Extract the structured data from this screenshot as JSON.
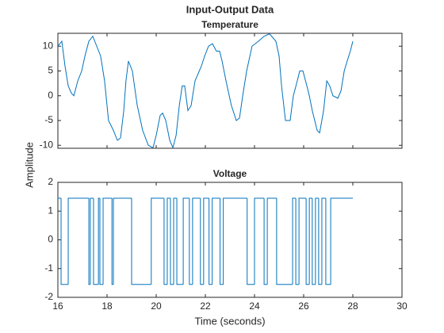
{
  "title": "Input-Output Data",
  "ylabel": "Amplitude",
  "xlabel": "Time (seconds)",
  "chart_data": [
    {
      "type": "line",
      "title": "Temperature",
      "color": "#0072BD",
      "xlim": [
        16,
        30
      ],
      "xticks": [
        16,
        18,
        20,
        22,
        24,
        26,
        28,
        30
      ],
      "show_xtick_labels": false,
      "ylim": [
        -10.6,
        12.6
      ],
      "yticks": [
        -10,
        -5,
        0,
        5,
        10
      ],
      "x": [
        16.0,
        16.16,
        16.29,
        16.42,
        16.55,
        16.65,
        16.81,
        16.97,
        17.1,
        17.26,
        17.42,
        17.58,
        17.74,
        17.9,
        18.06,
        18.26,
        18.42,
        18.55,
        18.68,
        18.77,
        18.87,
        19.03,
        19.23,
        19.45,
        19.68,
        19.87,
        20.0,
        20.16,
        20.26,
        20.39,
        20.55,
        20.68,
        20.81,
        20.94,
        21.06,
        21.16,
        21.29,
        21.42,
        21.58,
        21.84,
        21.97,
        22.13,
        22.29,
        22.45,
        22.58,
        22.68,
        22.84,
        23.06,
        23.26,
        23.39,
        23.52,
        23.68,
        23.9,
        24.16,
        24.39,
        24.61,
        24.87,
        25.0,
        25.1,
        25.26,
        25.45,
        25.58,
        25.74,
        25.84,
        25.97,
        26.13,
        26.23,
        26.35,
        26.55,
        26.65,
        26.81,
        26.94,
        27.06,
        27.19,
        27.39,
        27.52,
        27.65,
        27.77,
        27.9,
        28.0
      ],
      "values": [
        10,
        11,
        6,
        2,
        0.5,
        0,
        3,
        5,
        8,
        11,
        12,
        10,
        8,
        3,
        -5,
        -7,
        -9,
        -8.5,
        -3,
        3,
        7,
        5,
        -2,
        -7,
        -10,
        -10.5,
        -8,
        -4,
        -3.5,
        -5,
        -9,
        -10.5,
        -8,
        -2,
        2,
        2,
        -3,
        -2,
        3,
        6,
        8,
        10,
        10.5,
        9,
        9,
        7,
        3,
        -2,
        -5,
        -4.5,
        0,
        5,
        10,
        11,
        12,
        12.5,
        11,
        8,
        2,
        -5,
        -5,
        0,
        3,
        5,
        5,
        2,
        0,
        -3,
        -7,
        -7.5,
        -3,
        3,
        2,
        0,
        -0.5,
        1,
        5,
        7,
        9,
        11
      ]
    },
    {
      "type": "stairs",
      "title": "Voltage",
      "color": "#0072BD",
      "xlim": [
        16,
        30
      ],
      "xticks": [
        16,
        18,
        20,
        22,
        24,
        26,
        28,
        30
      ],
      "show_xtick_labels": true,
      "ylim": [
        -2,
        2
      ],
      "yticks": [
        -2,
        -1,
        0,
        1,
        2
      ],
      "x": [
        16.0,
        16.13,
        16.42,
        17.26,
        17.32,
        17.45,
        17.65,
        17.71,
        17.84,
        18.2,
        18.26,
        19.0,
        19.8,
        20.32,
        20.45,
        20.58,
        20.71,
        20.84,
        21.1,
        21.35,
        21.48,
        21.8,
        21.93,
        22.15,
        22.28,
        22.6,
        22.73,
        23.7,
        24.0,
        24.39,
        24.52,
        24.9,
        25.55,
        25.68,
        25.81,
        26.1,
        26.23,
        26.35,
        26.48,
        26.61,
        26.74,
        26.9,
        27.1,
        28.0
      ],
      "values": [
        1.45,
        -1.55,
        1.45,
        -1.55,
        1.45,
        -1.55,
        1.45,
        -1.55,
        1.45,
        -1.55,
        1.45,
        -1.55,
        1.45,
        -1.55,
        1.45,
        -1.55,
        1.45,
        -1.55,
        1.45,
        -1.55,
        1.45,
        -1.55,
        1.45,
        -1.55,
        1.45,
        -1.55,
        1.45,
        -1.55,
        1.45,
        -1.55,
        1.45,
        -1.55,
        1.45,
        -1.55,
        1.45,
        -1.55,
        1.45,
        -1.55,
        1.45,
        -1.55,
        1.45,
        -1.55,
        1.45,
        1.45
      ]
    }
  ]
}
